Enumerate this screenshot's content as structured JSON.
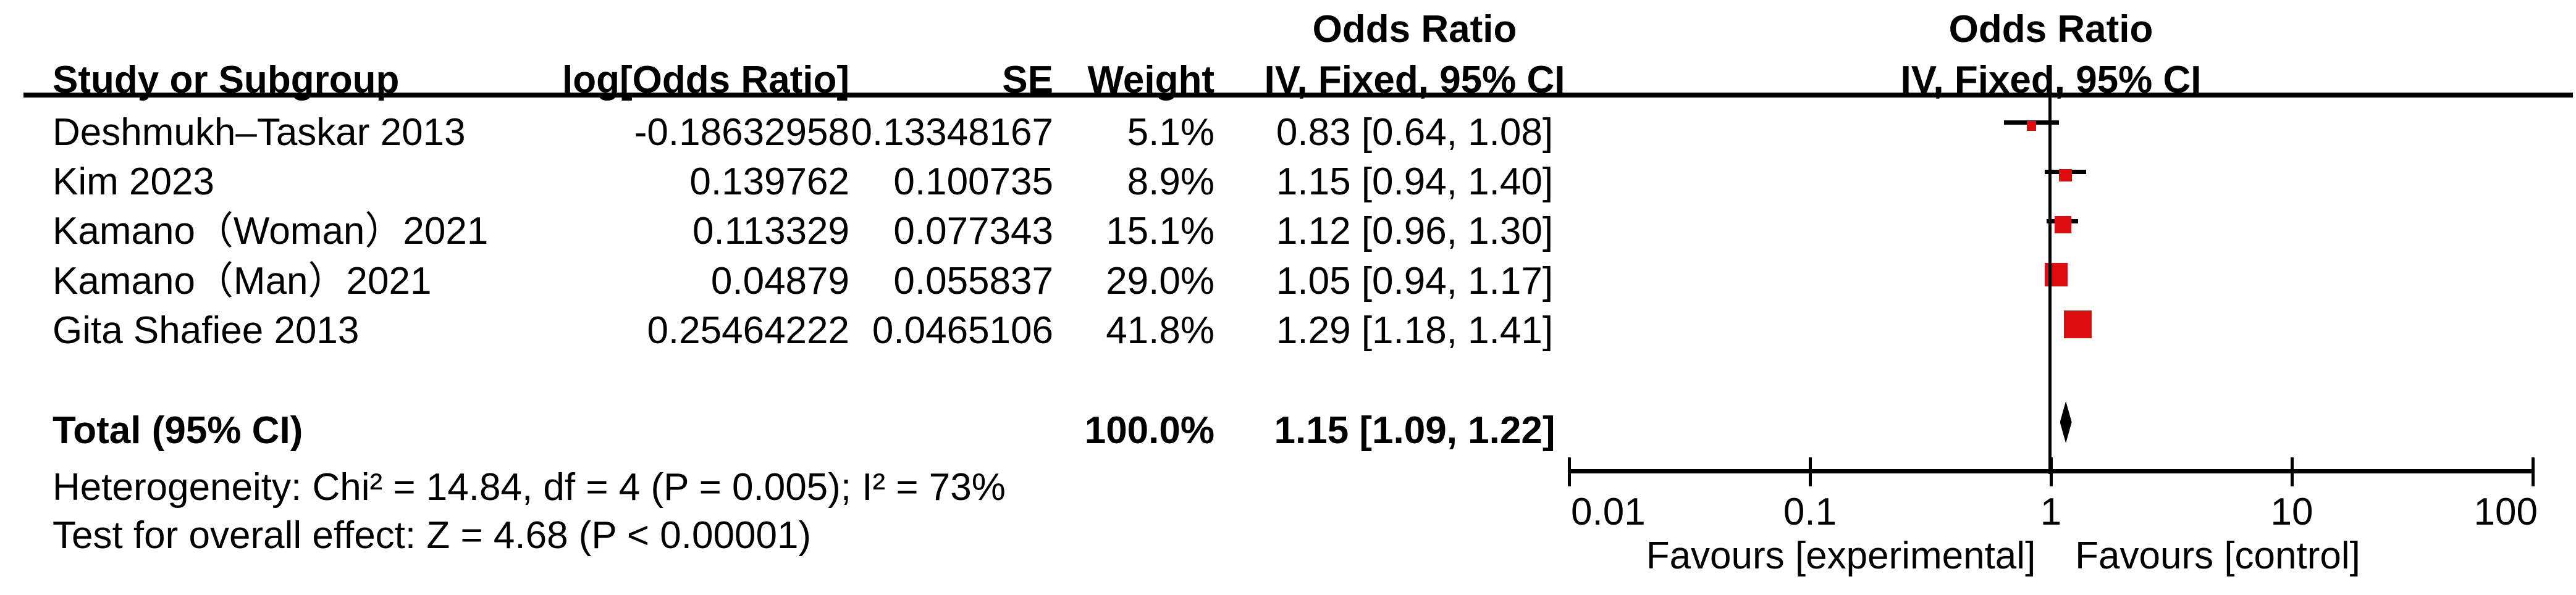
{
  "header": {
    "col_study": "Study or Subgroup",
    "col_logor": "log[Odds Ratio]",
    "col_se": "SE",
    "col_weight": "Weight",
    "effect_title": "Odds Ratio",
    "effect_method": "IV, Fixed, 95% CI",
    "plot_title": "Odds Ratio",
    "plot_method": "IV, Fixed, 95% CI"
  },
  "studies": [
    {
      "name": "Deshmukh–Taskar 2013",
      "log_or": "-0.18632958",
      "se": "0.13348167",
      "weight": "5.1%",
      "or_ci": "0.83 [0.64, 1.08]"
    },
    {
      "name": "Kim 2023",
      "log_or": "0.139762",
      "se": "0.100735",
      "weight": "8.9%",
      "or_ci": "1.15 [0.94, 1.40]"
    },
    {
      "name": "Kamano（Woman）2021",
      "log_or": "0.113329",
      "se": "0.077343",
      "weight": "15.1%",
      "or_ci": "1.12 [0.96, 1.30]"
    },
    {
      "name": "Kamano（Man）2021",
      "log_or": "0.04879",
      "se": "0.055837",
      "weight": "29.0%",
      "or_ci": "1.05 [0.94, 1.17]"
    },
    {
      "name": "Gita Shafiee 2013",
      "log_or": "0.25464222",
      "se": "0.0465106",
      "weight": "41.8%",
      "or_ci": "1.29 [1.18, 1.41]"
    }
  ],
  "total": {
    "label": "Total (95% CI)",
    "weight": "100.0%",
    "or_ci": "1.15 [1.09, 1.22]"
  },
  "stats": {
    "heterogeneity": "Heterogeneity: Chi² = 14.84, df = 4 (P = 0.005); I² = 73%",
    "overall_effect": "Test for overall effect: Z = 4.68 (P < 0.00001)"
  },
  "axis": {
    "tick_labels": [
      "0.01",
      "0.1",
      "1",
      "10",
      "100"
    ],
    "favours_left": "Favours [experimental]",
    "favours_right": "Favours [control]"
  },
  "colors": {
    "marker_red": "#df0c10",
    "line_black": "#000000",
    "background": "#ffffff"
  },
  "chart_data": {
    "type": "forest",
    "scale": "log10",
    "effect_measure": "Odds Ratio (IV, Fixed, 95% CI)",
    "x_ticks": [
      0.01,
      0.1,
      1,
      10,
      100
    ],
    "xlim": [
      0.01,
      100
    ],
    "studies": [
      {
        "name": "Deshmukh–Taskar 2013",
        "or": 0.83,
        "ci": [
          0.64,
          1.08
        ],
        "weight_pct": 5.1
      },
      {
        "name": "Kim 2023",
        "or": 1.15,
        "ci": [
          0.94,
          1.4
        ],
        "weight_pct": 8.9
      },
      {
        "name": "Kamano（Woman）2021",
        "or": 1.12,
        "ci": [
          0.96,
          1.3
        ],
        "weight_pct": 15.1
      },
      {
        "name": "Kamano（Man）2021",
        "or": 1.05,
        "ci": [
          0.94,
          1.17
        ],
        "weight_pct": 29.0
      },
      {
        "name": "Gita Shafiee 2013",
        "or": 1.29,
        "ci": [
          1.18,
          1.41
        ],
        "weight_pct": 41.8
      }
    ],
    "total": {
      "or": 1.15,
      "ci": [
        1.09,
        1.22
      ],
      "weight_pct": 100.0
    },
    "heterogeneity": {
      "chi2": 14.84,
      "df": 4,
      "p": 0.005,
      "i2_pct": 73
    },
    "overall_effect": {
      "z": 4.68,
      "p": "< 0.00001"
    }
  }
}
